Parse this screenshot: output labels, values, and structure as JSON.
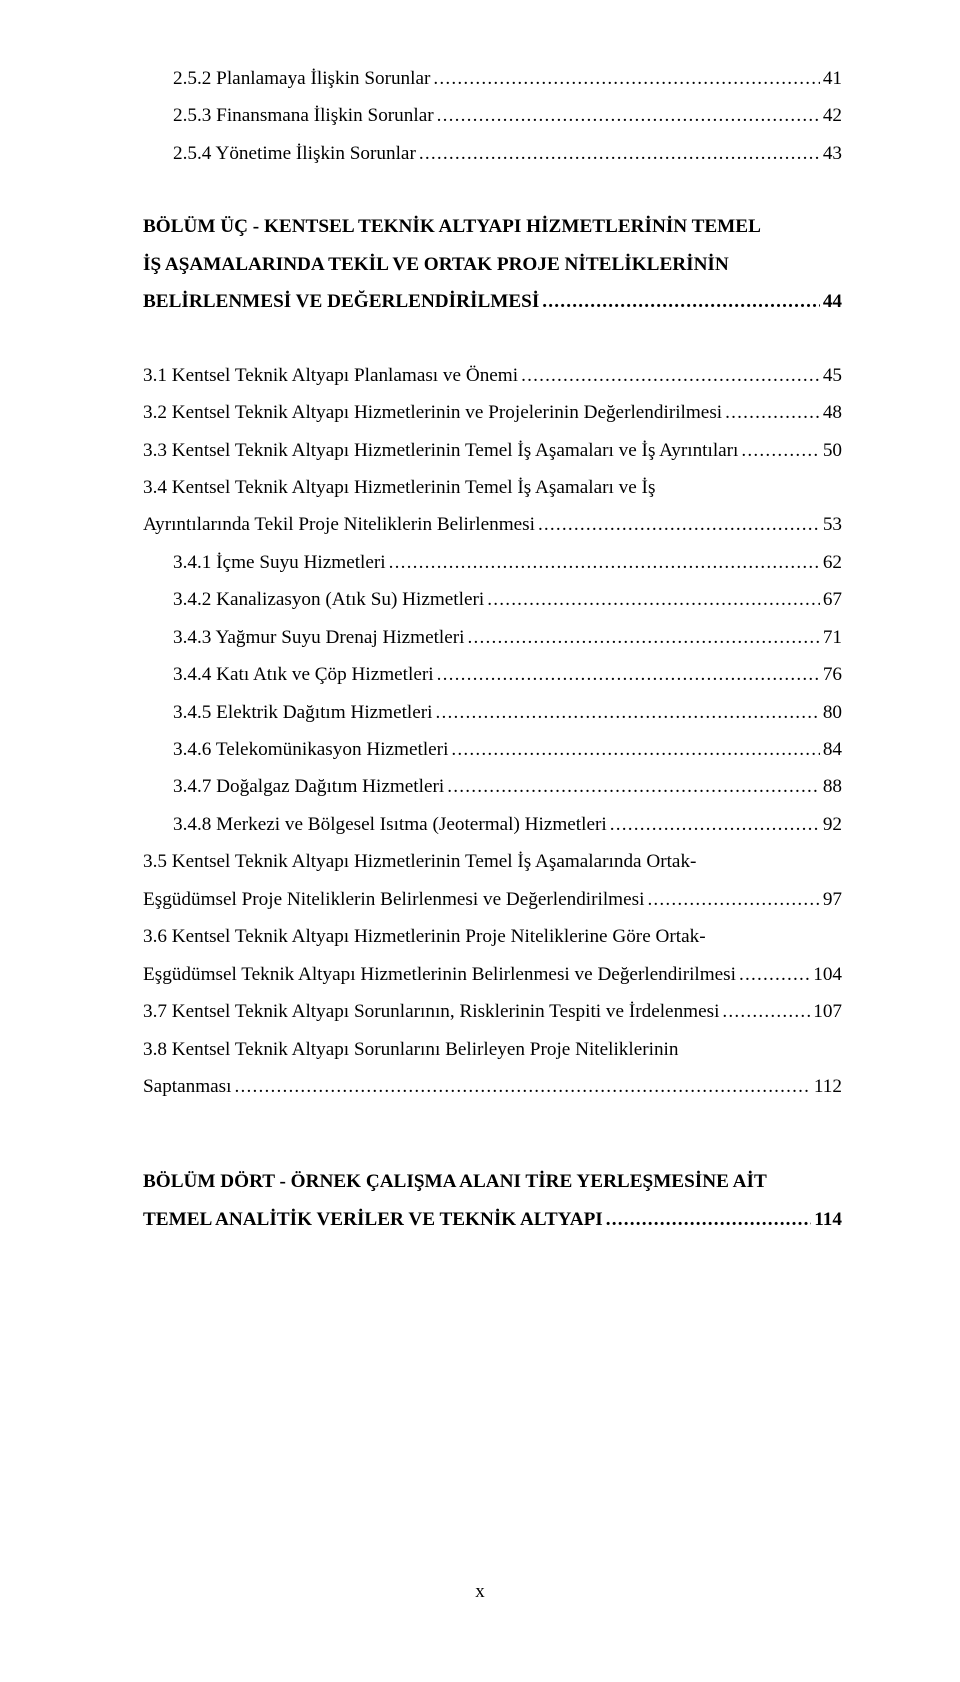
{
  "colors": {
    "text": "#000000",
    "background": "#ffffff"
  },
  "typography": {
    "font_family": "Times New Roman",
    "font_size_pt": 12,
    "line_height": 1.95
  },
  "page_number": "x",
  "section_heading": {
    "line1": "BÖLÜM ÜÇ - KENTSEL TEKNİK ALTYAPI HİZMETLERİNİN TEMEL",
    "line2": "İŞ AŞAMALARINDA TEKİL VE ORTAK PROJE NİTELİKLERİNİN",
    "line3_label": "BELİRLENMESİ VE DEĞERLENDİRİLMESİ",
    "line3_page": "44"
  },
  "section_heading_4": {
    "line1": "BÖLÜM DÖRT - ÖRNEK ÇALIŞMA ALANI TİRE YERLEŞMESİNE AİT",
    "line2_label": "TEMEL ANALİTİK VERİLER VE TEKNİK ALTYAPI",
    "line2_page": "114"
  },
  "entries": [
    {
      "indent": 1,
      "label": "2.5.2 Planlamaya İlişkin Sorunlar",
      "page": "41"
    },
    {
      "indent": 1,
      "label": "2.5.3 Finansmana İlişkin Sorunlar",
      "page": "42"
    },
    {
      "indent": 1,
      "label": "2.5.4 Yönetime İlişkin Sorunlar",
      "page": "43"
    }
  ],
  "entries_ch3": [
    {
      "indent": 0,
      "label": "3.1 Kentsel Teknik Altyapı Planlaması ve Önemi",
      "page": "45"
    },
    {
      "indent": 0,
      "label": "3.2 Kentsel Teknik Altyapı Hizmetlerinin ve Projelerinin Değerlendirilmesi",
      "page": "48"
    },
    {
      "indent": 0,
      "label": "3.3 Kentsel Teknik Altyapı Hizmetlerinin Temel İş Aşamaları ve İş Ayrıntıları",
      "page": "50"
    },
    {
      "indent": 0,
      "wrap": true,
      "line1": "3.4 Kentsel Teknik Altyapı Hizmetlerinin Temel İş Aşamaları ve İş",
      "label": "Ayrıntılarında Tekil Proje Niteliklerin Belirlenmesi",
      "page": "53"
    },
    {
      "indent": 1,
      "label": "3.4.1 İçme Suyu Hizmetleri",
      "page": "62"
    },
    {
      "indent": 1,
      "label": "3.4.2 Kanalizasyon (Atık Su) Hizmetleri",
      "page": "67"
    },
    {
      "indent": 1,
      "label": "3.4.3 Yağmur Suyu Drenaj Hizmetleri",
      "page": "71"
    },
    {
      "indent": 1,
      "label": "3.4.4 Katı Atık ve Çöp Hizmetleri",
      "page": "76"
    },
    {
      "indent": 1,
      "label": "3.4.5 Elektrik Dağıtım Hizmetleri",
      "page": "80"
    },
    {
      "indent": 1,
      "label": "3.4.6 Telekomünikasyon Hizmetleri",
      "page": "84"
    },
    {
      "indent": 1,
      "label": "3.4.7 Doğalgaz Dağıtım Hizmetleri",
      "page": "88"
    },
    {
      "indent": 1,
      "label": "3.4.8 Merkezi ve Bölgesel Isıtma (Jeotermal) Hizmetleri",
      "page": "92"
    },
    {
      "indent": 0,
      "wrap": true,
      "line1": "3.5 Kentsel Teknik Altyapı Hizmetlerinin Temel İş Aşamalarında Ortak-",
      "label": "Eşgüdümsel Proje Niteliklerin Belirlenmesi ve Değerlendirilmesi",
      "page": "97"
    },
    {
      "indent": 0,
      "wrap": true,
      "line1": "3.6 Kentsel Teknik Altyapı Hizmetlerinin Proje Niteliklerine Göre Ortak-",
      "label": "Eşgüdümsel Teknik Altyapı Hizmetlerinin Belirlenmesi ve Değerlendirilmesi",
      "page": "104"
    },
    {
      "indent": 0,
      "label": "3.7 Kentsel Teknik Altyapı Sorunlarının, Risklerinin Tespiti ve İrdelenmesi",
      "page": "107"
    },
    {
      "indent": 0,
      "wrap": true,
      "line1": "3.8 Kentsel Teknik Altyapı Sorunlarını Belirleyen Proje Niteliklerinin",
      "label": "Saptanması",
      "page": "112"
    }
  ]
}
